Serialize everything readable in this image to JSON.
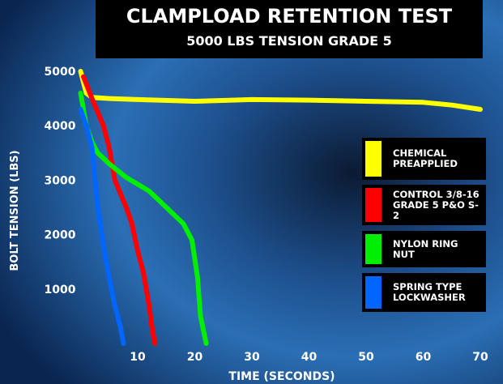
{
  "chart_data": {
    "type": "line",
    "title": "CLAMPLOAD RETENTION TEST",
    "subtitle": "5000 LBS TENSION GRADE 5",
    "x_label": "TIME (SECONDS)",
    "y_label": "BOLT TENSION (LBS)",
    "xlim": [
      0,
      70
    ],
    "ylim": [
      0,
      5000
    ],
    "xticks": [
      10,
      20,
      30,
      40,
      50,
      60,
      70
    ],
    "yticks": [
      1000,
      2000,
      3000,
      4000,
      5000
    ],
    "series": [
      {
        "name": "CHEMICAL\nPREAPPLIED",
        "color": "#ffff00",
        "x": [
          0,
          1,
          2,
          5,
          10,
          20,
          30,
          40,
          50,
          60,
          65,
          70
        ],
        "values": [
          5000,
          4600,
          4520,
          4500,
          4480,
          4450,
          4480,
          4470,
          4450,
          4430,
          4380,
          4300
        ]
      },
      {
        "name": "CONTROL 3/8-16\nGRADE 5 P&O S-2",
        "color": "#ff0000",
        "x": [
          0.5,
          2,
          4,
          5,
          6,
          8,
          9,
          10,
          11,
          12,
          12.5,
          13
        ],
        "values": [
          4900,
          4500,
          4000,
          3600,
          3000,
          2500,
          2200,
          1700,
          1300,
          700,
          300,
          0
        ]
      },
      {
        "name": "NYLON RING NUT",
        "color": "#00ee00",
        "x": [
          0,
          1,
          2,
          3,
          5,
          8,
          12,
          15,
          18,
          19.5,
          20.5,
          21,
          22
        ],
        "values": [
          4600,
          4000,
          3700,
          3500,
          3300,
          3050,
          2800,
          2500,
          2200,
          1900,
          1200,
          500,
          0
        ]
      },
      {
        "name": "SPRING TYPE\nLOCKWASHER",
        "color": "#0066ff",
        "x": [
          0,
          1,
          2,
          3,
          4,
          5,
          6,
          7,
          7.5
        ],
        "values": [
          4300,
          4000,
          3600,
          2500,
          1800,
          1200,
          700,
          300,
          0
        ]
      }
    ]
  }
}
